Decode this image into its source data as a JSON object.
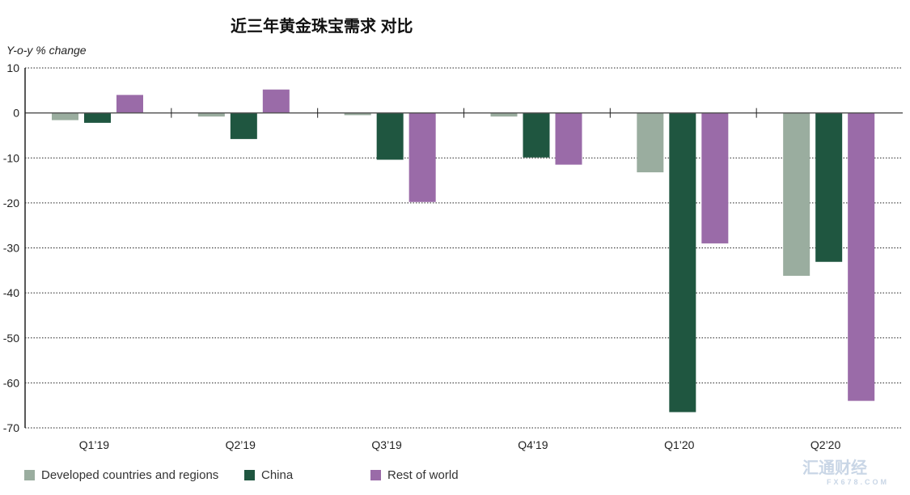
{
  "watermark": "汇通财经 FX678.COM",
  "chart_data": {
    "type": "bar",
    "title": "近三年黄金珠宝需求 对比",
    "ylabel": "Y-o-y % change",
    "xlabel": "",
    "ylim": [
      -70,
      10
    ],
    "yticks": [
      10,
      0,
      -10,
      -20,
      -30,
      -40,
      -50,
      -60,
      -70
    ],
    "grid": true,
    "legend_position": "bottom",
    "categories": [
      "Q1’19",
      "Q2’19",
      "Q3’19",
      "Q4’19",
      "Q1’20",
      "Q2’20"
    ],
    "series": [
      {
        "name": "Developed countries and regions",
        "color": "#9aad9f",
        "values": [
          -1.6,
          -0.8,
          -0.5,
          -0.8,
          -13.2,
          -36.2
        ]
      },
      {
        "name": "China",
        "color": "#1f5640",
        "values": [
          -2.2,
          -5.8,
          -10.4,
          -9.9,
          -66.5,
          -33.1
        ]
      },
      {
        "name": "Rest of world",
        "color": "#9a6ba8",
        "values": [
          4.0,
          5.2,
          -19.8,
          -11.5,
          -29.0,
          -64.0
        ]
      }
    ]
  }
}
